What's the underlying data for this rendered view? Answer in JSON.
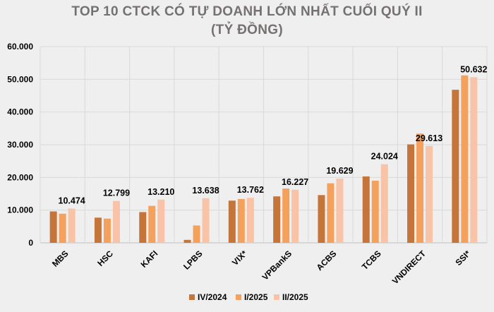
{
  "chart_data": {
    "type": "bar",
    "title": "TOP 10 CTCK CÓ TỰ DOANH LỚN NHẤT CUỐI QUÝ II",
    "subtitle": "(TỶ ĐỒNG)",
    "categories": [
      "MBS",
      "HSC",
      "KAFI",
      "LPBS",
      "VIX*",
      "VPBankS",
      "ACBS",
      "TCBS",
      "VNDIRECT",
      "SSI*"
    ],
    "series": [
      {
        "name": "IV/2024",
        "color": "#c5753a",
        "values": [
          9600,
          7700,
          9400,
          900,
          12900,
          14200,
          14600,
          20300,
          30100,
          46800
        ]
      },
      {
        "name": "I/2025",
        "color": "#f4a15d",
        "values": [
          8900,
          7400,
          11300,
          5300,
          13400,
          16600,
          18200,
          19000,
          33400,
          51200
        ]
      },
      {
        "name": "II/2025",
        "color": "#f8c3a6",
        "values": [
          10474,
          12799,
          13210,
          13638,
          13762,
          16227,
          19629,
          24024,
          29613,
          50632
        ]
      }
    ],
    "data_labels": [
      "10.474",
      "12.799",
      "13.210",
      "13.638",
      "13.762",
      "16.227",
      "19.629",
      "24.024",
      "29.613",
      "50.632"
    ],
    "y_ticks": [
      "0",
      "10.000",
      "20.000",
      "30.000",
      "40.000",
      "50.000",
      "60.000"
    ],
    "ylim": [
      0,
      60000
    ],
    "grid": true,
    "legend_position": "bottom"
  }
}
